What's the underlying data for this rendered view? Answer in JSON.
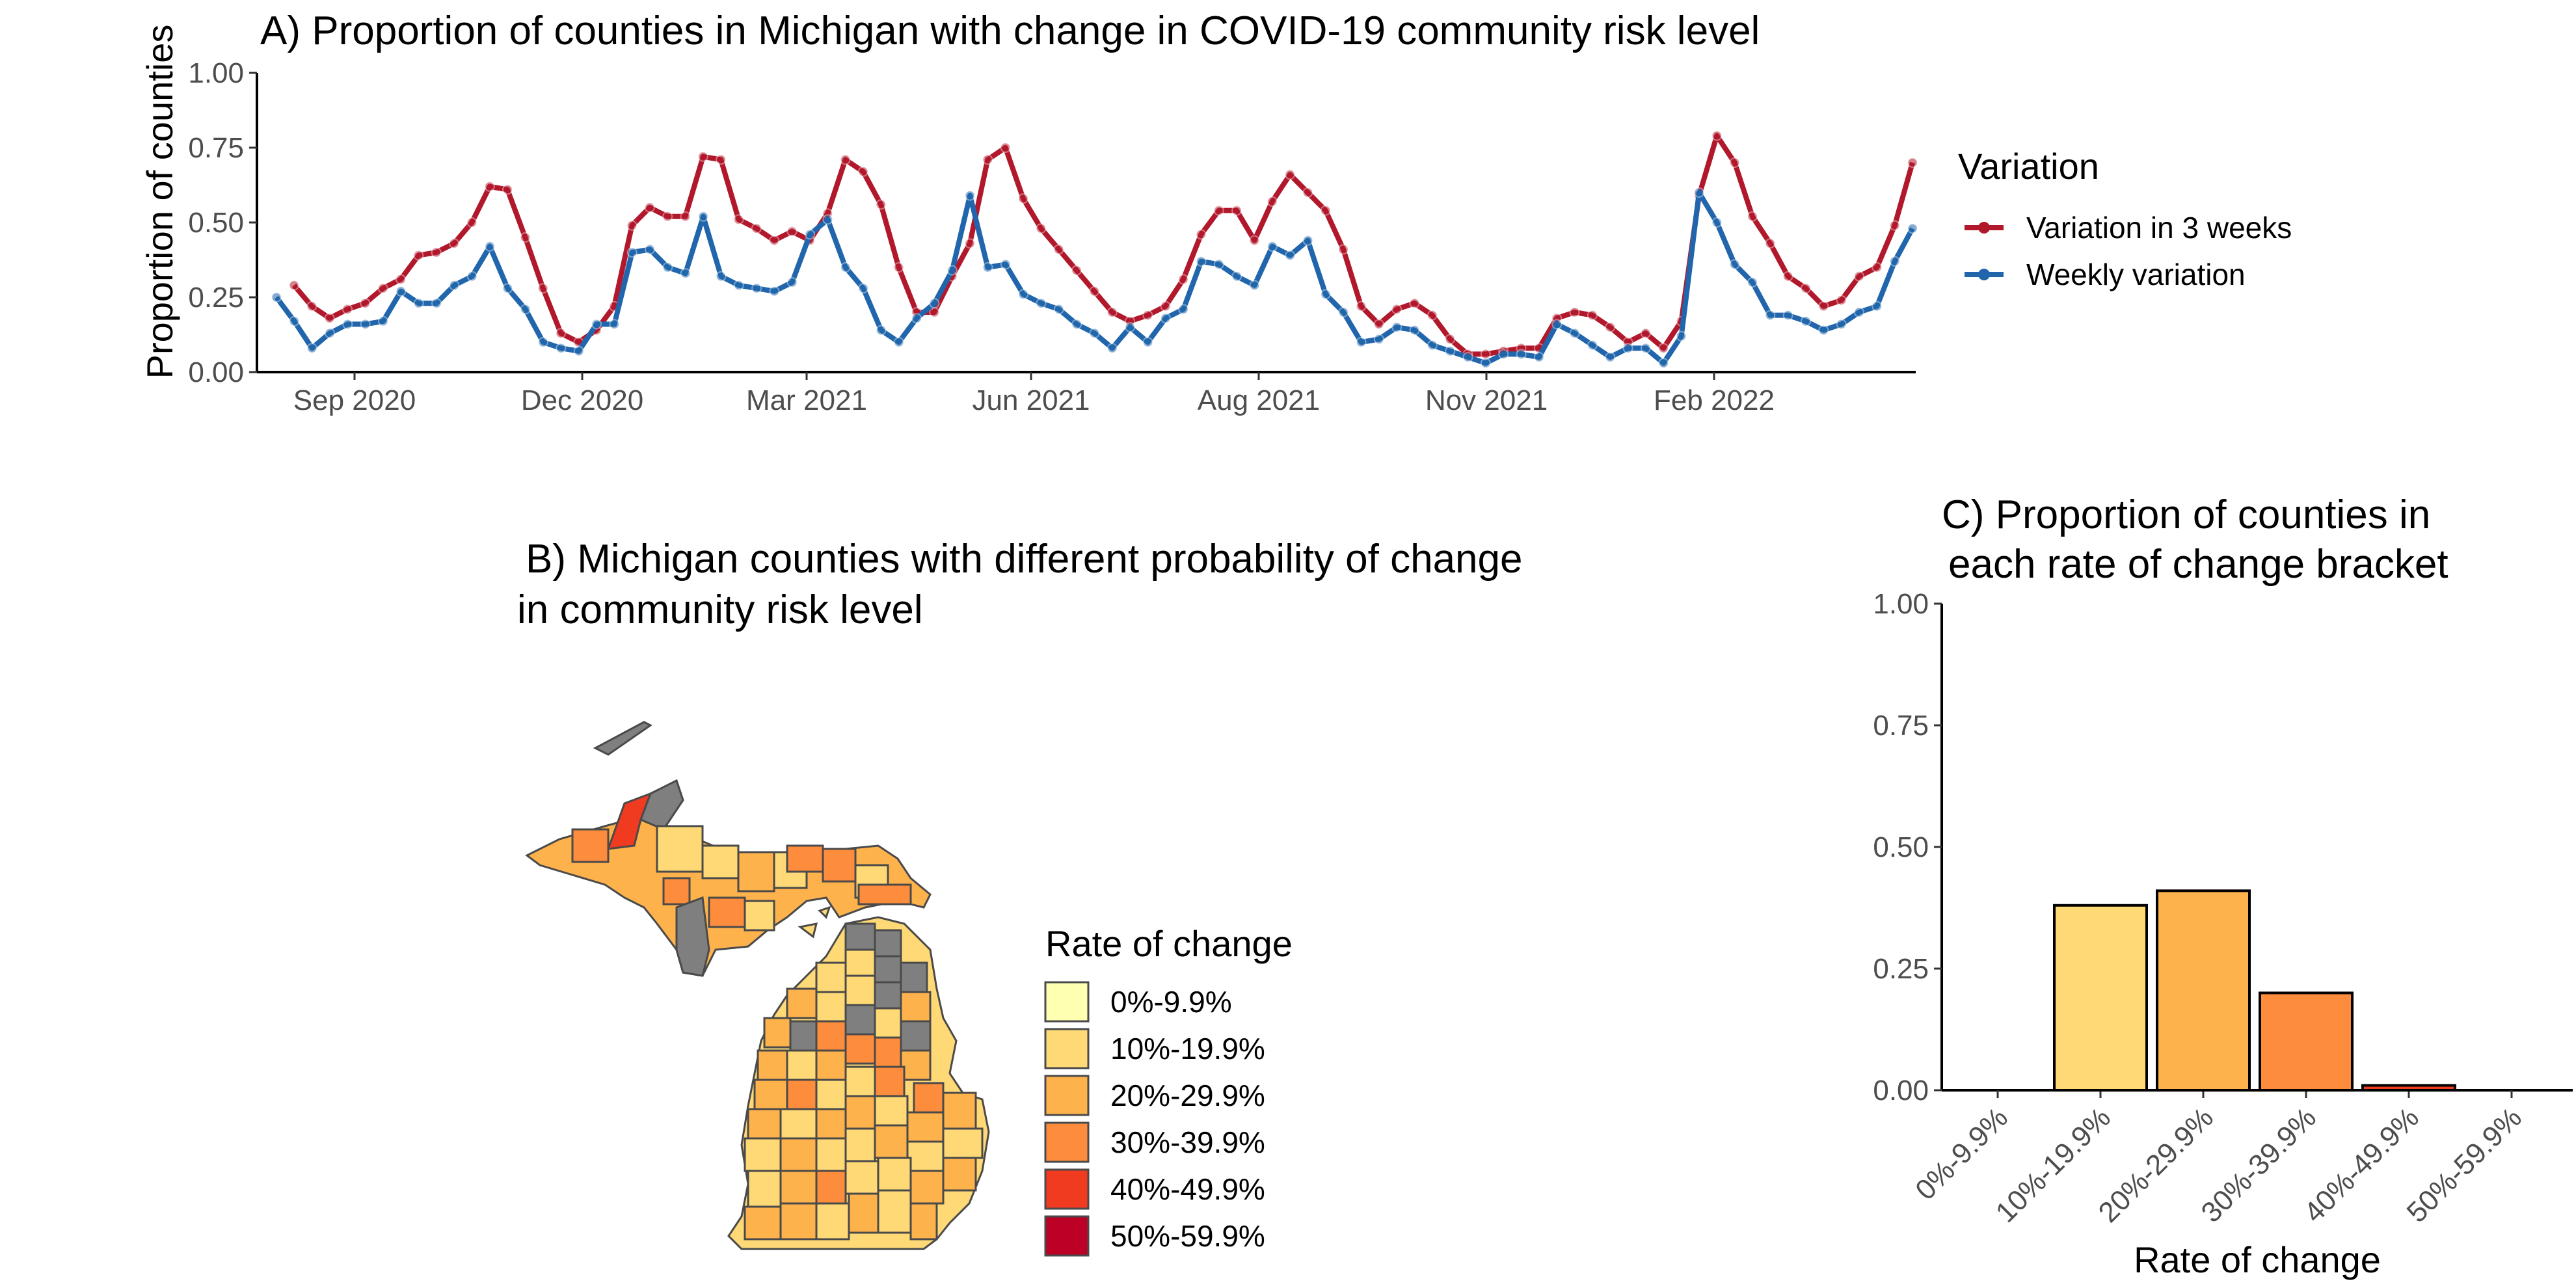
{
  "colors": {
    "variation_3_weeks": "#b2182b",
    "weekly_variation": "#2166ac",
    "missing_county": "#7f7f7f",
    "county_border": "#4a4a4a",
    "bracket_0": "#ffffb2",
    "bracket_10": "#fed976",
    "bracket_20": "#feb24c",
    "bracket_30": "#fd8d3c",
    "bracket_40": "#f03b20",
    "bracket_50": "#bd0026"
  },
  "chart_data": [
    {
      "panel": "A",
      "type": "line",
      "title": "A) Proportion of counties in Michigan with change in COVID-19 community risk level",
      "xlabel": "",
      "ylabel": "Proportion of counties",
      "ylim": [
        0,
        1
      ],
      "yticks": [
        "0.00",
        "0.25",
        "0.50",
        "0.75",
        "1.00"
      ],
      "xticks": [
        "Sep 2020",
        "Dec 2020",
        "Mar 2021",
        "Jun 2021",
        "Aug 2021",
        "Nov 2021",
        "Feb 2022"
      ],
      "legend": {
        "title": "Variation",
        "placement": "right"
      },
      "series": [
        {
          "name": "Variation in 3 weeks",
          "color": "#b2182b",
          "values": [
            0.29,
            0.22,
            0.18,
            0.21,
            0.23,
            0.28,
            0.31,
            0.39,
            0.4,
            0.43,
            0.5,
            0.62,
            0.61,
            0.45,
            0.28,
            0.13,
            0.1,
            0.14,
            0.22,
            0.49,
            0.55,
            0.52,
            0.52,
            0.72,
            0.71,
            0.51,
            0.48,
            0.44,
            0.47,
            0.44,
            0.53,
            0.71,
            0.67,
            0.56,
            0.35,
            0.2,
            0.2,
            0.32,
            0.43,
            0.71,
            0.75,
            0.58,
            0.48,
            0.41,
            0.34,
            0.27,
            0.2,
            0.17,
            0.19,
            0.22,
            0.31,
            0.46,
            0.54,
            0.54,
            0.44,
            0.57,
            0.66,
            0.6,
            0.54,
            0.41,
            0.22,
            0.16,
            0.21,
            0.23,
            0.19,
            0.11,
            0.06,
            0.06,
            0.07,
            0.08,
            0.08,
            0.18,
            0.2,
            0.19,
            0.15,
            0.1,
            0.13,
            0.08,
            0.17,
            0.59,
            0.79,
            0.7,
            0.52,
            0.43,
            0.32,
            0.28,
            0.22,
            0.24,
            0.32,
            0.35,
            0.49,
            0.7
          ]
        },
        {
          "name": "Weekly variation",
          "color": "#2166ac",
          "values": [
            0.25,
            0.17,
            0.08,
            0.13,
            0.16,
            0.16,
            0.17,
            0.27,
            0.23,
            0.23,
            0.29,
            0.32,
            0.42,
            0.28,
            0.21,
            0.1,
            0.08,
            0.07,
            0.16,
            0.16,
            0.4,
            0.41,
            0.35,
            0.33,
            0.52,
            0.32,
            0.29,
            0.28,
            0.27,
            0.3,
            0.46,
            0.51,
            0.35,
            0.28,
            0.14,
            0.1,
            0.18,
            0.23,
            0.34,
            0.59,
            0.35,
            0.36,
            0.26,
            0.23,
            0.21,
            0.16,
            0.13,
            0.08,
            0.15,
            0.1,
            0.18,
            0.21,
            0.37,
            0.36,
            0.32,
            0.29,
            0.42,
            0.39,
            0.44,
            0.26,
            0.2,
            0.1,
            0.11,
            0.15,
            0.14,
            0.09,
            0.07,
            0.05,
            0.03,
            0.06,
            0.06,
            0.05,
            0.16,
            0.13,
            0.09,
            0.05,
            0.08,
            0.08,
            0.03,
            0.12,
            0.6,
            0.5,
            0.36,
            0.3,
            0.19,
            0.19,
            0.17,
            0.14,
            0.16,
            0.2,
            0.22,
            0.37,
            0.48
          ]
        }
      ]
    },
    {
      "panel": "C",
      "type": "bar",
      "title": "C) Proportion of counties in\n each rate of change bracket",
      "xlabel": "Rate of change",
      "ylabel": "",
      "ylim": [
        0,
        1
      ],
      "yticks": [
        "0.00",
        "0.25",
        "0.50",
        "0.75",
        "1.00"
      ],
      "categories": [
        "0%-9.9%",
        "10%-19.9%",
        "20%-29.9%",
        "30%-39.9%",
        "40%-49.9%",
        "50%-59.9%"
      ],
      "values": [
        0,
        0.38,
        0.41,
        0.2,
        0.01,
        0
      ]
    }
  ],
  "map": {
    "title": " B)  Michigan counties with different probability of change\nin community risk level",
    "legend_title": "Rate of change",
    "legend_items": [
      "0%-9.9%",
      "10%-19.9%",
      "20%-29.9%",
      "30%-39.9%",
      "40%-49.9%",
      "50%-59.9%"
    ]
  }
}
